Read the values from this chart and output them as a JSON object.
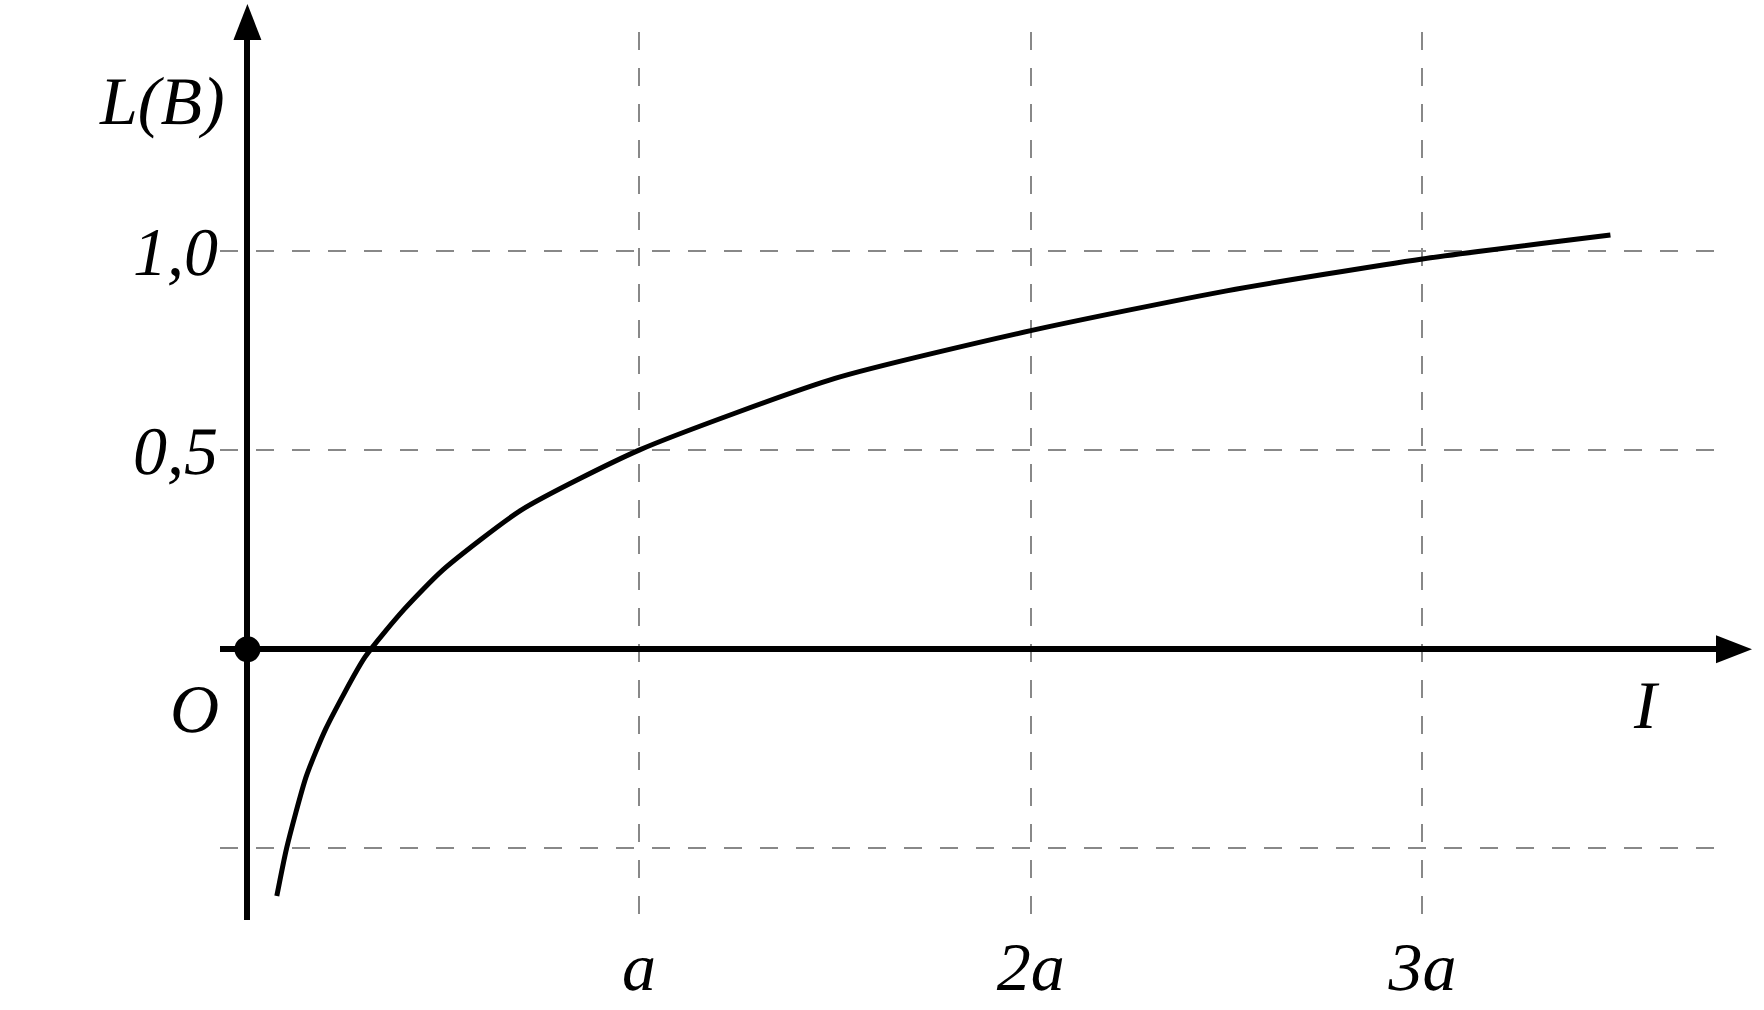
{
  "chart_data": {
    "type": "line",
    "xlabel": "I",
    "ylabel": "L(B)",
    "series": [
      {
        "type": "line",
        "color": "#000000",
        "marker": "none",
        "line_style": "solid",
        "x": [
          0.075,
          0.1,
          0.15,
          0.2,
          0.3,
          0.4,
          0.5,
          0.7,
          1,
          1.5,
          2,
          2.5,
          3,
          3.48
        ],
        "values": [
          -0.62,
          -0.5,
          -0.32,
          -0.2,
          -0.02,
          0.1,
          0.2,
          0.35,
          0.5,
          0.68,
          0.8,
          0.9,
          0.98,
          1.04
        ]
      },
      {
        "type": "scatter",
        "color": "#000000",
        "marker": "circle",
        "x": [
          0
        ],
        "values": [
          0
        ]
      }
    ],
    "xlim": [
      -0.07,
      3.77
    ],
    "ylim": [
      -0.68,
      1.55
    ],
    "xticks": [
      {
        "value": 1,
        "label": "a"
      },
      {
        "value": 2,
        "label": "2a"
      },
      {
        "value": 3,
        "label": "3a"
      }
    ],
    "yticks": [
      {
        "value": -0.5,
        "label": null
      },
      {
        "value": 0.5,
        "label": "0,5"
      },
      {
        "value": 1,
        "label": "1,0"
      }
    ],
    "annotations": [
      {
        "text": "O",
        "x": 0,
        "y": 0
      }
    ],
    "grid": true
  }
}
